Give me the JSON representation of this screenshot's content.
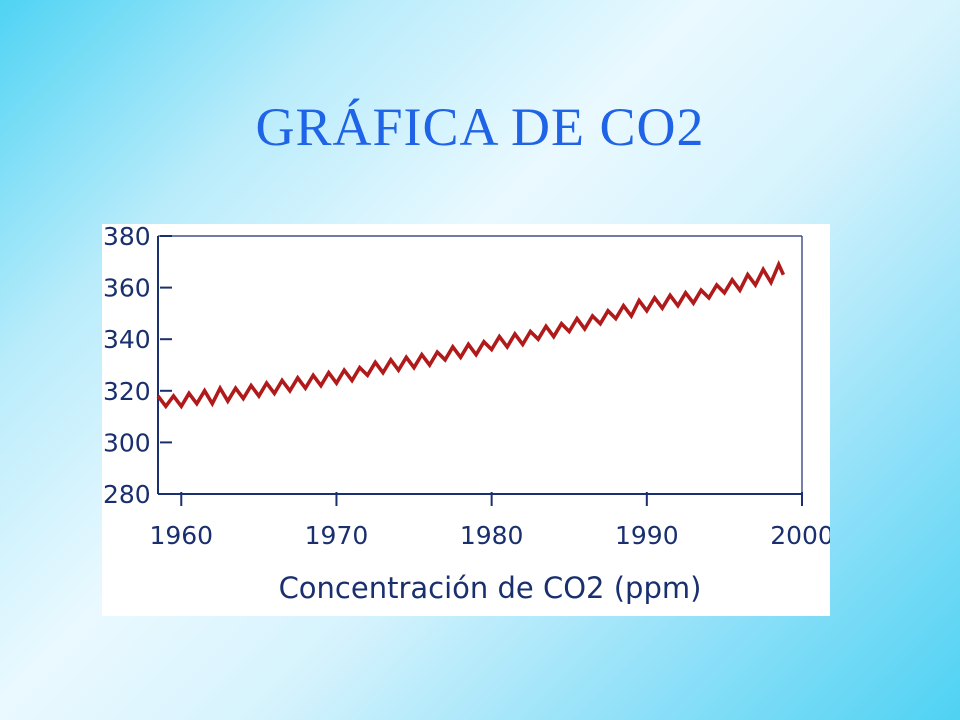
{
  "slide": {
    "title": "GRÁFICA DE CO2",
    "title_color": "#1f63e6"
  },
  "chart_data": {
    "type": "line",
    "title": "",
    "xlabel": "Concentración de CO2 (ppm)",
    "ylabel": "",
    "xlim": [
      1958.5,
      2000
    ],
    "ylim": [
      280,
      380
    ],
    "x_ticks": [
      1960,
      1970,
      1980,
      1990,
      2000
    ],
    "x_tick_labels": [
      "1960",
      "1970",
      "1980",
      "1990",
      "2000"
    ],
    "y_ticks": [
      280,
      300,
      320,
      340,
      360,
      380
    ],
    "y_tick_labels": [
      "280",
      "300",
      "320",
      "340",
      "360",
      "380"
    ],
    "grid": false,
    "legend": "none",
    "line_color": "#b01a1a",
    "axis_color": "#1a2f6e",
    "label_color": "#1a2f6e",
    "series": [
      {
        "x": [
          1958.5,
          1959.0,
          1959.5,
          1960.0,
          1960.5,
          1961.0,
          1961.5,
          1962.0,
          1962.5,
          1963.0,
          1963.5,
          1964.0,
          1964.5,
          1965.0,
          1965.5,
          1966.0,
          1966.5,
          1967.0,
          1967.5,
          1968.0,
          1968.5,
          1969.0,
          1969.5,
          1970.0,
          1970.5,
          1971.0,
          1971.5,
          1972.0,
          1972.5,
          1973.0,
          1973.5,
          1974.0,
          1974.5,
          1975.0,
          1975.5,
          1976.0,
          1976.5,
          1977.0,
          1977.5,
          1978.0,
          1978.5,
          1979.0,
          1979.5,
          1980.0,
          1980.5,
          1981.0,
          1981.5,
          1982.0,
          1982.5,
          1983.0,
          1983.5,
          1984.0,
          1984.5,
          1985.0,
          1985.5,
          1986.0,
          1986.5,
          1987.0,
          1987.5,
          1988.0,
          1988.5,
          1989.0,
          1989.5,
          1990.0,
          1990.5,
          1991.0,
          1991.5,
          1992.0,
          1992.5,
          1993.0,
          1993.5,
          1994.0,
          1994.5,
          1995.0,
          1995.5,
          1996.0,
          1996.5,
          1997.0,
          1997.5,
          1998.0,
          1998.5,
          1998.8
        ],
        "y": [
          318,
          314,
          318,
          314,
          319,
          315,
          320,
          315,
          321,
          316,
          321,
          317,
          322,
          318,
          323,
          319,
          324,
          320,
          325,
          321,
          326,
          322,
          327,
          323,
          328,
          324,
          329,
          326,
          331,
          327,
          332,
          328,
          333,
          329,
          334,
          330,
          335,
          332,
          337,
          333,
          338,
          334,
          339,
          336,
          341,
          337,
          342,
          338,
          343,
          340,
          345,
          341,
          346,
          343,
          348,
          344,
          349,
          346,
          351,
          348,
          353,
          349,
          355,
          351,
          356,
          352,
          357,
          353,
          358,
          354,
          359,
          356,
          361,
          358,
          363,
          359,
          365,
          361,
          367,
          362,
          369,
          365
        ]
      }
    ]
  }
}
